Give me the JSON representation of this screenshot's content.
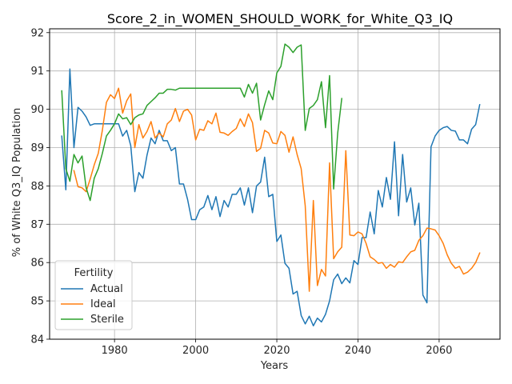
{
  "chart_data": {
    "type": "line",
    "title": "Score_2_in_WOMEN_SHOULD_WORK_for_White_Q3_IQ",
    "xlabel": "Years",
    "ylabel": "% of White Q3_IQ Population",
    "xlim": [
      1964,
      2075
    ],
    "ylim": [
      84.0,
      92.1
    ],
    "xticks": [
      1980,
      2000,
      2020,
      2040,
      2060
    ],
    "yticks": [
      84,
      85,
      86,
      87,
      88,
      89,
      90,
      91,
      92
    ],
    "grid": true,
    "legend": {
      "title": "Fertility",
      "position": "lower-left"
    },
    "series": [
      {
        "name": "Actual",
        "color": "#1f77b4",
        "x": [
          1967,
          1968,
          1969,
          1970,
          1971,
          1972,
          1973,
          1974,
          1975,
          1976,
          1977,
          1978,
          1979,
          1980,
          1981,
          1982,
          1983,
          1984,
          1985,
          1986,
          1987,
          1988,
          1989,
          1990,
          1991,
          1992,
          1993,
          1994,
          1995,
          1996,
          1997,
          1998,
          1999,
          2000,
          2001,
          2002,
          2003,
          2004,
          2005,
          2006,
          2007,
          2008,
          2009,
          2010,
          2011,
          2012,
          2013,
          2014,
          2015,
          2016,
          2017,
          2018,
          2019,
          2020,
          2021,
          2022,
          2023,
          2024,
          2025,
          2026,
          2027,
          2028,
          2029,
          2030,
          2031,
          2032,
          2033,
          2034,
          2035,
          2036,
          2037,
          2038,
          2039,
          2040,
          2041,
          2042,
          2043,
          2044,
          2045,
          2046,
          2047,
          2048,
          2049,
          2050,
          2051,
          2052,
          2053,
          2054,
          2055,
          2056,
          2057,
          2058,
          2059,
          2060,
          2061,
          2062,
          2063,
          2064,
          2065,
          2066,
          2067,
          2068,
          2069,
          2070
        ],
        "y": [
          89.3,
          87.9,
          91.05,
          89.0,
          90.05,
          89.95,
          89.8,
          89.58,
          89.62,
          89.62,
          89.62,
          89.62,
          89.62,
          89.62,
          89.62,
          89.3,
          89.45,
          89.05,
          87.85,
          88.35,
          88.2,
          88.8,
          89.25,
          89.1,
          89.45,
          89.18,
          89.18,
          88.92,
          89.0,
          88.05,
          88.05,
          87.65,
          87.12,
          87.12,
          87.38,
          87.45,
          87.75,
          87.38,
          87.72,
          87.2,
          87.62,
          87.45,
          87.78,
          87.78,
          87.95,
          87.5,
          87.95,
          87.3,
          88.0,
          88.1,
          88.75,
          87.72,
          87.78,
          86.55,
          86.72,
          85.98,
          85.85,
          85.18,
          85.25,
          84.62,
          84.4,
          84.6,
          84.35,
          84.55,
          84.45,
          84.65,
          85.0,
          85.55,
          85.7,
          85.45,
          85.6,
          85.47,
          86.05,
          85.95,
          86.65,
          86.65,
          87.32,
          86.75,
          87.88,
          87.45,
          88.22,
          87.65,
          89.15,
          87.22,
          88.82,
          87.58,
          87.95,
          86.98,
          87.55,
          85.15,
          84.95,
          89.02,
          89.3,
          89.45,
          89.52,
          89.55,
          89.45,
          89.43,
          89.2,
          89.2,
          89.1,
          89.48,
          89.6,
          90.12
        ]
      },
      {
        "name": "Ideal",
        "color": "#ff7f0e",
        "x": [
          1970,
          1971,
          1972,
          1973,
          1974,
          1975,
          1976,
          1977,
          1978,
          1979,
          1980,
          1981,
          1982,
          1983,
          1984,
          1985,
          1986,
          1987,
          1988,
          1989,
          1990,
          1991,
          1992,
          1993,
          1994,
          1995,
          1996,
          1997,
          1998,
          1999,
          2000,
          2001,
          2002,
          2003,
          2004,
          2005,
          2006,
          2007,
          2008,
          2009,
          2010,
          2011,
          2012,
          2013,
          2014,
          2015,
          2016,
          2017,
          2018,
          2019,
          2020,
          2021,
          2022,
          2023,
          2024,
          2025,
          2026,
          2027,
          2028,
          2029,
          2030,
          2031,
          2032,
          2033,
          2034,
          2035,
          2036,
          2037,
          2038,
          2039,
          2040,
          2041,
          2042,
          2043,
          2044,
          2045,
          2046,
          2047,
          2048,
          2049,
          2050,
          2051,
          2052,
          2053,
          2054,
          2055,
          2056,
          2057,
          2058,
          2059,
          2060,
          2061,
          2062,
          2063,
          2064,
          2065,
          2066,
          2067,
          2068,
          2069,
          2070
        ],
        "y": [
          88.4,
          87.98,
          87.95,
          87.85,
          88.18,
          88.55,
          88.85,
          89.45,
          90.18,
          90.38,
          90.28,
          90.55,
          89.9,
          90.22,
          90.4,
          89.0,
          89.6,
          89.25,
          89.42,
          89.68,
          89.25,
          89.38,
          89.28,
          89.62,
          89.72,
          90.02,
          89.68,
          89.95,
          90.0,
          89.85,
          89.2,
          89.48,
          89.45,
          89.7,
          89.62,
          89.9,
          89.4,
          89.38,
          89.32,
          89.42,
          89.5,
          89.75,
          89.55,
          89.88,
          89.65,
          88.9,
          88.98,
          89.45,
          89.38,
          89.12,
          89.1,
          89.42,
          89.32,
          88.88,
          89.28,
          88.82,
          88.45,
          87.48,
          85.25,
          87.62,
          85.4,
          85.82,
          85.65,
          88.6,
          86.1,
          86.28,
          86.4,
          88.92,
          86.72,
          86.7,
          86.8,
          86.75,
          86.5,
          86.15,
          86.08,
          85.98,
          86.0,
          85.85,
          85.95,
          85.88,
          86.02,
          86.0,
          86.15,
          86.28,
          86.32,
          86.58,
          86.7,
          86.9,
          86.88,
          86.85,
          86.7,
          86.5,
          86.2,
          85.98,
          85.85,
          85.9,
          85.7,
          85.75,
          85.85,
          86.0,
          86.25
        ]
      },
      {
        "name": "Sterile",
        "color": "#2ca02c",
        "x": [
          1967,
          1968,
          1969,
          1970,
          1971,
          1972,
          1973,
          1974,
          1975,
          1976,
          1977,
          1978,
          1979,
          1980,
          1981,
          1982,
          1983,
          1984,
          1985,
          1986,
          1987,
          1988,
          1989,
          1990,
          1991,
          1992,
          1993,
          1994,
          1995,
          1996,
          1997,
          1998,
          1999,
          2000,
          2001,
          2002,
          2003,
          2004,
          2005,
          2006,
          2007,
          2008,
          2009,
          2010,
          2011,
          2012,
          2013,
          2014,
          2015,
          2016,
          2017,
          2018,
          2019,
          2020,
          2021,
          2022,
          2023,
          2024,
          2025,
          2026,
          2027,
          2028,
          2029,
          2030,
          2031,
          2032,
          2033,
          2034,
          2035,
          2036
        ],
        "y": [
          90.48,
          88.45,
          88.12,
          88.82,
          88.6,
          88.78,
          87.95,
          87.62,
          88.2,
          88.45,
          88.85,
          89.3,
          89.45,
          89.62,
          89.88,
          89.75,
          89.78,
          89.6,
          89.78,
          89.85,
          89.88,
          90.1,
          90.2,
          90.3,
          90.42,
          90.42,
          90.52,
          90.52,
          90.5,
          90.55,
          90.55,
          90.55,
          90.55,
          90.55,
          90.55,
          90.55,
          90.55,
          90.55,
          90.55,
          90.55,
          90.55,
          90.55,
          90.55,
          90.55,
          90.55,
          90.32,
          90.65,
          90.42,
          90.68,
          89.72,
          90.12,
          90.48,
          90.25,
          90.95,
          91.12,
          91.7,
          91.62,
          91.48,
          91.62,
          91.68,
          89.45,
          90.02,
          90.1,
          90.25,
          90.72,
          89.52,
          90.88,
          87.92,
          89.38,
          90.28
        ]
      }
    ]
  }
}
